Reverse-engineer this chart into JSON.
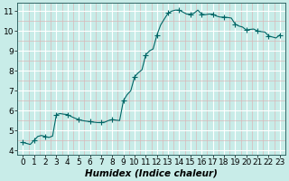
{
  "xlabel": "Humidex (Indice chaleur)",
  "ylabel": "",
  "background_color": "#c8ece8",
  "minor_grid_color": "#d8b8b8",
  "major_grid_color": "#ffffff",
  "line_color": "#006666",
  "marker_color": "#006666",
  "xlim": [
    -0.5,
    23.5
  ],
  "ylim": [
    3.8,
    11.4
  ],
  "xticks": [
    0,
    1,
    2,
    3,
    4,
    5,
    6,
    7,
    8,
    9,
    10,
    11,
    12,
    13,
    14,
    15,
    16,
    17,
    18,
    19,
    20,
    21,
    22,
    23
  ],
  "yticks": [
    4,
    5,
    6,
    7,
    8,
    9,
    10,
    11
  ],
  "x": [
    0,
    0.33,
    0.66,
    1,
    1.33,
    1.66,
    2,
    2.33,
    2.66,
    3,
    3.33,
    3.66,
    4,
    4.33,
    4.66,
    5,
    5.33,
    5.66,
    6,
    6.33,
    6.66,
    7,
    7.33,
    7.66,
    8,
    8.33,
    8.66,
    9,
    9.33,
    9.66,
    10,
    10.33,
    10.66,
    11,
    11.33,
    11.66,
    12,
    12.33,
    12.66,
    13,
    13.33,
    13.66,
    14,
    14.33,
    14.66,
    15,
    15.33,
    15.66,
    16,
    16.33,
    16.66,
    17,
    17.33,
    17.66,
    18,
    18.33,
    18.66,
    19,
    19.33,
    19.66,
    20,
    20.33,
    20.66,
    21,
    21.33,
    21.66,
    22,
    22.33,
    22.66,
    23
  ],
  "y": [
    4.4,
    4.35,
    4.3,
    4.5,
    4.7,
    4.75,
    4.7,
    4.65,
    4.72,
    5.8,
    5.85,
    5.82,
    5.8,
    5.7,
    5.62,
    5.55,
    5.5,
    5.47,
    5.45,
    5.42,
    5.4,
    5.4,
    5.42,
    5.5,
    5.55,
    5.52,
    5.5,
    6.5,
    6.8,
    7.0,
    7.7,
    7.9,
    8.05,
    8.8,
    9.0,
    9.1,
    9.8,
    10.3,
    10.6,
    10.9,
    11.0,
    11.05,
    11.05,
    10.95,
    10.85,
    10.85,
    10.9,
    11.05,
    10.85,
    10.82,
    10.85,
    10.85,
    10.75,
    10.7,
    10.7,
    10.68,
    10.65,
    10.35,
    10.25,
    10.2,
    10.05,
    10.08,
    10.1,
    10.0,
    9.97,
    9.95,
    9.75,
    9.7,
    9.65,
    9.8
  ],
  "marker_x": [
    0,
    1,
    2,
    3,
    4,
    5,
    6,
    7,
    8,
    9,
    10,
    11,
    12,
    13,
    14,
    15,
    16,
    17,
    18,
    19,
    20,
    21,
    22,
    23
  ],
  "marker_y": [
    4.4,
    4.5,
    4.7,
    5.8,
    5.8,
    5.55,
    5.45,
    5.4,
    5.55,
    6.5,
    7.7,
    8.8,
    9.8,
    10.9,
    11.05,
    10.85,
    10.85,
    10.85,
    10.7,
    10.35,
    10.05,
    10.0,
    9.75,
    9.8
  ],
  "font_size": 7,
  "tick_font_size": 6.5,
  "xlabel_fontsize": 7.5,
  "linewidth": 0.8,
  "markersize": 2.0
}
